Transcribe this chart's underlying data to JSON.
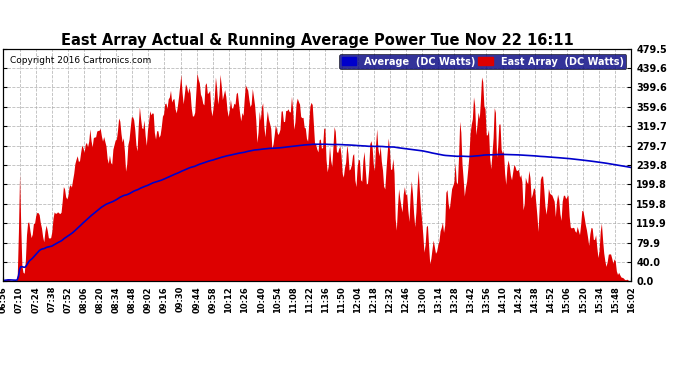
{
  "title": "East Array Actual & Running Average Power Tue Nov 22 16:11",
  "copyright": "Copyright 2016 Cartronics.com",
  "legend": [
    {
      "label": "Average  (DC Watts)",
      "color": "#0000cc"
    },
    {
      "label": "East Array  (DC Watts)",
      "color": "#cc0000"
    }
  ],
  "yticks": [
    0.0,
    40.0,
    79.9,
    119.9,
    159.8,
    199.8,
    239.8,
    279.7,
    319.7,
    359.6,
    399.6,
    439.6,
    479.5
  ],
  "ylim": [
    0,
    479.5
  ],
  "background_color": "#ffffff",
  "plot_background": "#ffffff",
  "grid_color": "#aaaaaa",
  "red_color": "#dd0000",
  "blue_color": "#0000cc",
  "xtick_labels": [
    "06:56",
    "07:10",
    "07:24",
    "07:38",
    "07:52",
    "08:06",
    "08:20",
    "08:34",
    "08:48",
    "09:02",
    "09:16",
    "09:30",
    "09:44",
    "09:58",
    "10:12",
    "10:26",
    "10:40",
    "10:54",
    "11:08",
    "11:22",
    "11:36",
    "11:50",
    "12:04",
    "12:18",
    "12:32",
    "12:46",
    "13:00",
    "13:14",
    "13:28",
    "13:42",
    "13:56",
    "14:10",
    "14:24",
    "14:38",
    "14:52",
    "15:06",
    "15:20",
    "15:34",
    "15:48",
    "16:02"
  ]
}
